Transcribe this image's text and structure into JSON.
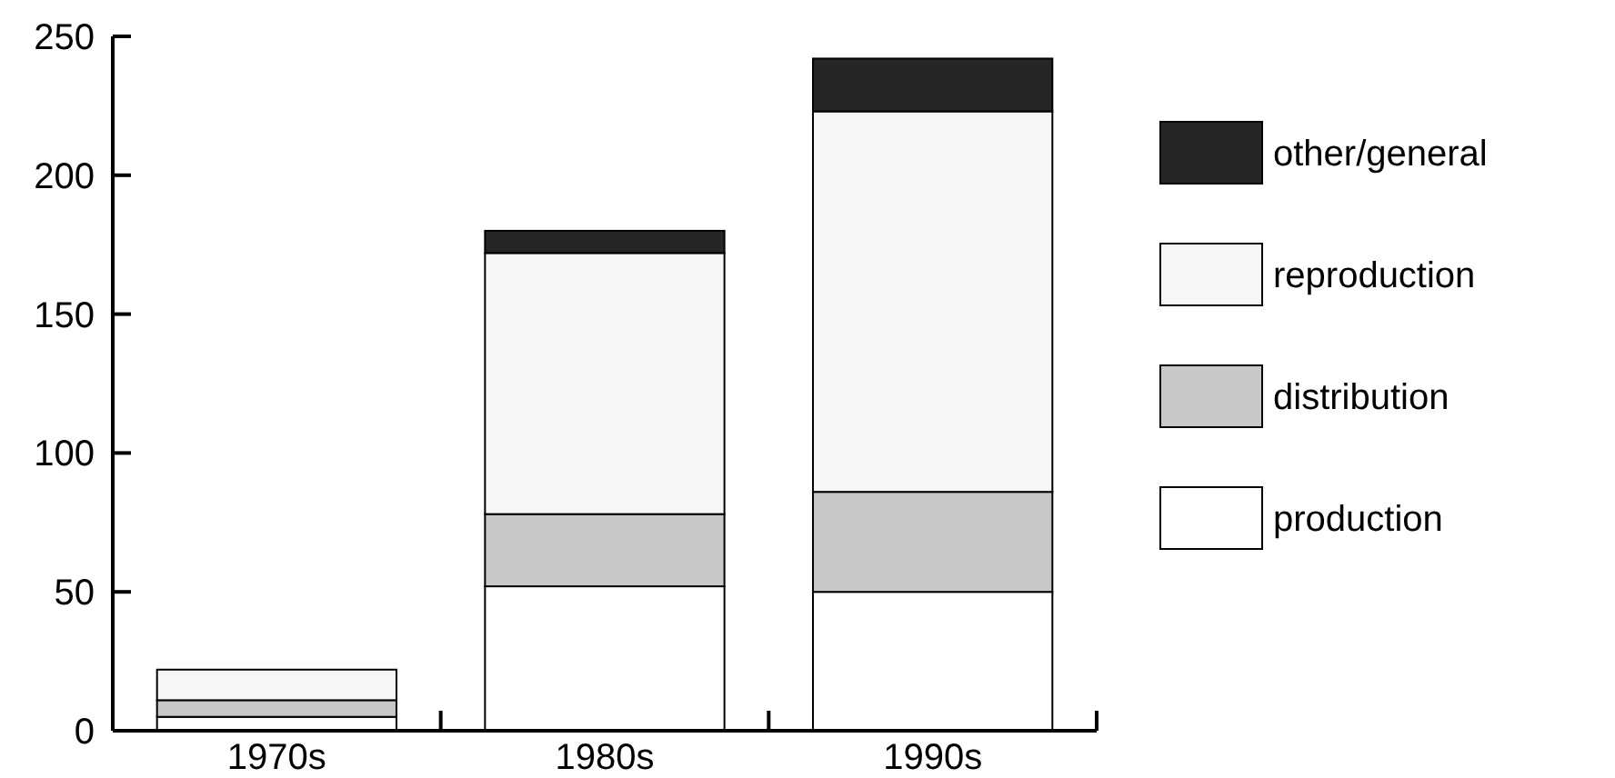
{
  "chart_data": {
    "type": "bar",
    "stacked": true,
    "categories": [
      "1970s",
      "1980s",
      "1990s"
    ],
    "series": [
      {
        "name": "production",
        "color": "#ffffff",
        "values": [
          5,
          52,
          50
        ]
      },
      {
        "name": "distribution",
        "color": "#c8c8c8",
        "values": [
          6,
          26,
          36
        ]
      },
      {
        "name": "reproduction",
        "color": "#f6f6f6",
        "values": [
          11,
          94,
          137
        ]
      },
      {
        "name": "other/general",
        "color": "#262626",
        "values": [
          0,
          8,
          19
        ]
      }
    ],
    "ylim": [
      0,
      250
    ],
    "yticks": [
      0,
      50,
      100,
      150,
      200,
      250
    ],
    "grid": false,
    "legend": "right"
  }
}
